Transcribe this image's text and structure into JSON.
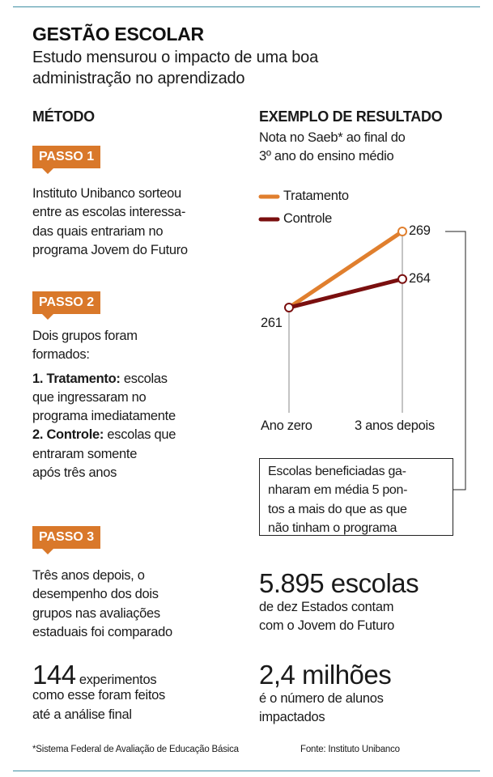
{
  "header": {
    "title": "GESTÃO ESCOLAR",
    "subtitle_lines": [
      "Estudo mensurou o impacto de uma boa",
      "administração no aprendizado"
    ]
  },
  "method": {
    "heading": "MÉTODO",
    "steps": [
      {
        "label": "PASSO 1",
        "lines": [
          "Instituto Unibanco sorteou",
          "entre as escolas interessa-",
          "das quais entrariam no",
          "programa Jovem do Futuro"
        ]
      },
      {
        "label": "PASSO 2",
        "lines": [
          "Dois grupos foram",
          "formados:"
        ],
        "groups": [
          {
            "bold": "1. Tratamento:",
            "lines": [
              " escolas",
              "que ingressaram no",
              "programa imediatamente"
            ]
          },
          {
            "bold": "2. Controle:",
            "lines": [
              " escolas que",
              "entraram somente",
              "após três anos"
            ]
          }
        ]
      },
      {
        "label": "PASSO 3",
        "lines": [
          "Três anos depois, o",
          "desempenho dos dois",
          "grupos nas avaliações",
          "estaduais foi comparado"
        ]
      }
    ],
    "stat": {
      "number": "144",
      "text_lines": [
        " experimentos",
        "como esse foram feitos",
        "até a análise final"
      ]
    }
  },
  "result": {
    "heading": "EXEMPLO DE RESULTADO",
    "subtitle_lines": [
      "Nota no Saeb* ao final do",
      "3º ano do ensino médio"
    ],
    "callout_lines": [
      "Escolas beneficiadas ga-",
      "nharam em média 5 pon-",
      "tos a mais do que as que",
      "não tinham o programa"
    ],
    "stat1": {
      "number": "5.895 escolas",
      "lines": [
        "de dez Estados contam",
        "com o Jovem do Futuro"
      ]
    },
    "stat2": {
      "number": "2,4 milhões",
      "lines": [
        "é o número de alunos",
        "impactados"
      ]
    }
  },
  "chart_data": {
    "type": "line",
    "categories": [
      "Ano zero",
      "3 anos depois"
    ],
    "series": [
      {
        "name": "Tratamento",
        "values": [
          261,
          269
        ],
        "color": "#e07f2e"
      },
      {
        "name": "Controle",
        "values": [
          261,
          264
        ],
        "color": "#7a0f0f"
      }
    ],
    "data_labels": [
      "261",
      "269",
      "264"
    ],
    "legend": "top-left",
    "grid": false
  },
  "footer": {
    "note": "*Sistema Federal de Avaliação de Educação Básica",
    "source": "Fonte: Instituto Unibanco"
  },
  "colors": {
    "accent": "#d9782a",
    "rule": "#3f8fa3"
  }
}
